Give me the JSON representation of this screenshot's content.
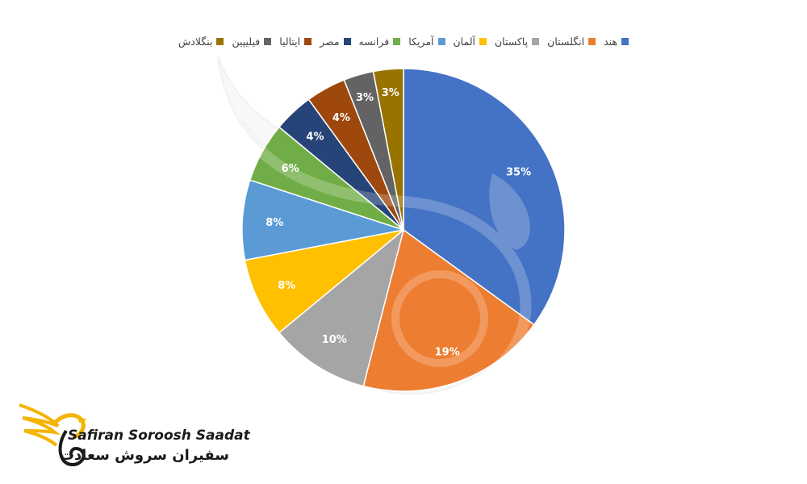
{
  "chart_data": {
    "type": "pie",
    "categories": [
      "هند",
      "انگلستان",
      "پاکستان",
      "آلمان",
      "آمریکا",
      "فرانسه",
      "مصر",
      "ایتالیا",
      "فیلیپین",
      "بنگلادش"
    ],
    "values": [
      35,
      19,
      10,
      8,
      8,
      6,
      4,
      4,
      3,
      3
    ],
    "data_labels": [
      "35%",
      "19%",
      "10%",
      "8%",
      "8%",
      "6%",
      "4%",
      "4%",
      "3%",
      "3%"
    ],
    "colors": [
      "#4472C4",
      "#ED7D31",
      "#A5A5A5",
      "#FFC000",
      "#5B9BD5",
      "#70AD47",
      "#264478",
      "#9E480E",
      "#636363",
      "#997300"
    ],
    "legend_position": "top",
    "start_angle_deg": 0,
    "direction": "clockwise"
  },
  "watermark": {
    "brand_en": "Safiran Soroosh Saadat",
    "brand_fa": "سفیران سروش سعادت",
    "icon": "phoenix-bird-logo-icon"
  }
}
